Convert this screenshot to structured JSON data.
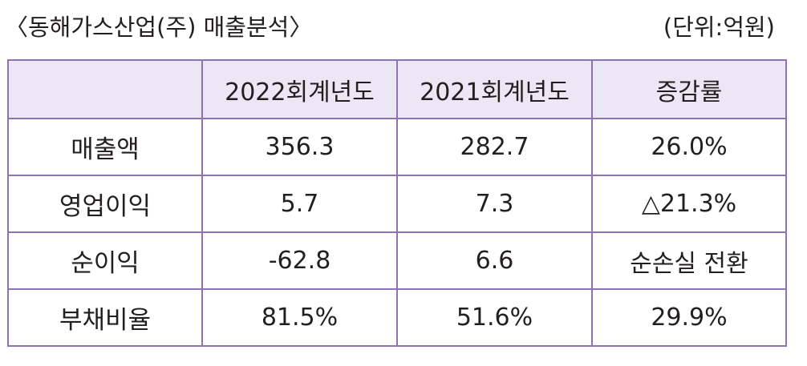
{
  "caption": {
    "title": "〈동해가스산업(주) 매출분석〉",
    "unit": "(단위:억원)"
  },
  "table": {
    "headers": [
      "",
      "2022회계년도",
      "2021회계년도",
      "증감률"
    ],
    "rows": [
      {
        "label": "매출액",
        "cells": [
          "356.3",
          "282.7",
          "26.0%"
        ]
      },
      {
        "label": "영업이익",
        "cells": [
          "5.7",
          "7.3",
          "△21.3%"
        ]
      },
      {
        "label": "순이익",
        "cells": [
          "-62.8",
          "6.6",
          "순손실 전환"
        ]
      },
      {
        "label": "부채비율",
        "cells": [
          "81.5%",
          "51.6%",
          "29.9%"
        ]
      }
    ]
  },
  "colors": {
    "border": "#8e73b3",
    "header_bg": "#ebe7f4",
    "text": "#231f20"
  }
}
